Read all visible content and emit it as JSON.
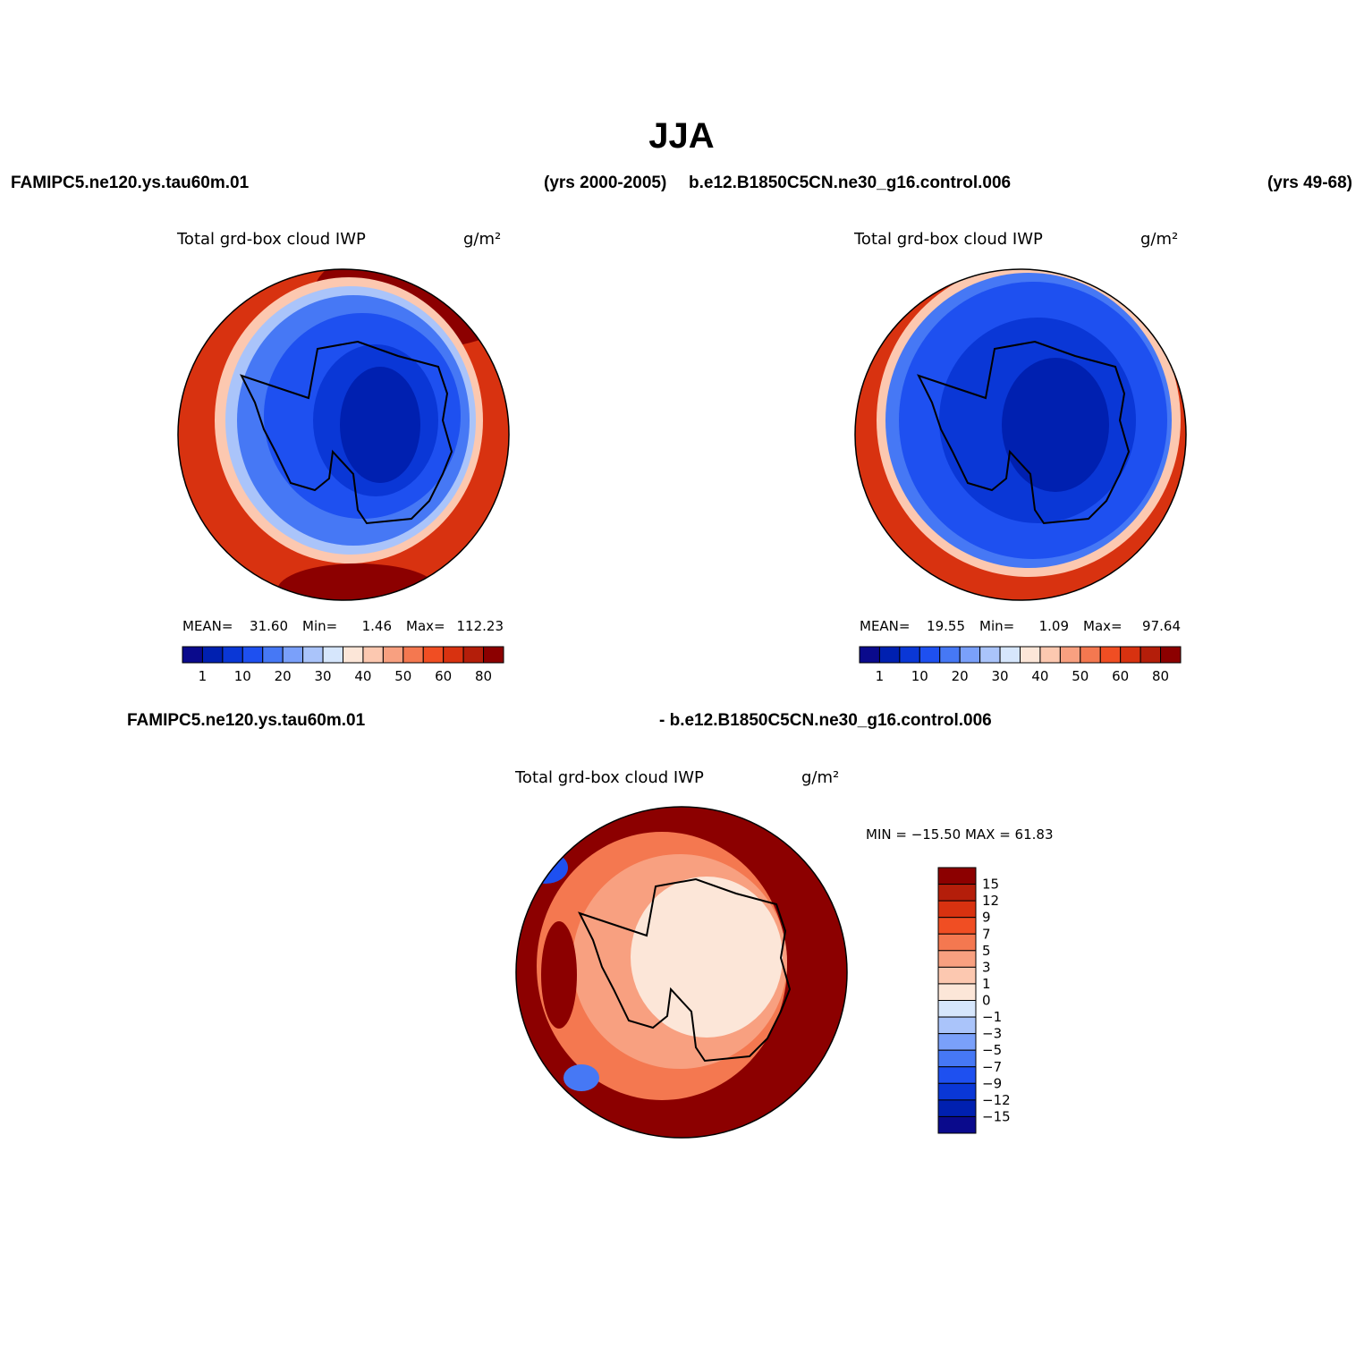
{
  "figure": {
    "title": "JJA",
    "top_left_case": "FAMIPC5.ne120.ys.tau60m.01",
    "top_left_years": "(yrs 2000-2005)",
    "top_right_case": "b.e12.B1850C5CN.ne30_g16.control.006",
    "top_right_years": "(yrs 49-68)",
    "diff_left": "FAMIPC5.ne120.ys.tau60m.01",
    "diff_right": "- b.e12.B1850C5CN.ne30_g16.control.006",
    "panels": [
      {
        "variable": "Total grd-box cloud IWP",
        "units": "g/m²",
        "mean_label": "MEAN=",
        "mean": "31.60",
        "min_label": "Min=",
        "min": "1.46",
        "max_label": "Max=",
        "max": "112.23"
      },
      {
        "variable": "Total grd-box cloud IWP",
        "units": "g/m²",
        "mean_label": "MEAN=",
        "mean": "19.55",
        "min_label": "Min=",
        "min": "1.09",
        "max_label": "Max=",
        "max": "97.64"
      },
      {
        "variable": "Total grd-box cloud IWP",
        "units": "g/m²",
        "minmax": "MIN = −15.50 MAX =   61.83"
      }
    ],
    "colorbar": {
      "colors": [
        "#0a0a8c",
        "#0020b0",
        "#0a37d6",
        "#1e50f0",
        "#4678f5",
        "#7aa0fa",
        "#aac4fa",
        "#d6e6fc",
        "#fce6d8",
        "#fcc8b0",
        "#f8a080",
        "#f47850",
        "#f04e23",
        "#d83210",
        "#b41e0a",
        "#8c0000"
      ],
      "labels": [
        "1",
        "10",
        "20",
        "30",
        "40",
        "50",
        "60",
        "80"
      ],
      "diff_labels": [
        "15",
        "12",
        "9",
        "7",
        "5",
        "3",
        "1",
        "0",
        "−1",
        "−3",
        "−5",
        "−7",
        "−9",
        "−12",
        "−15"
      ]
    }
  }
}
